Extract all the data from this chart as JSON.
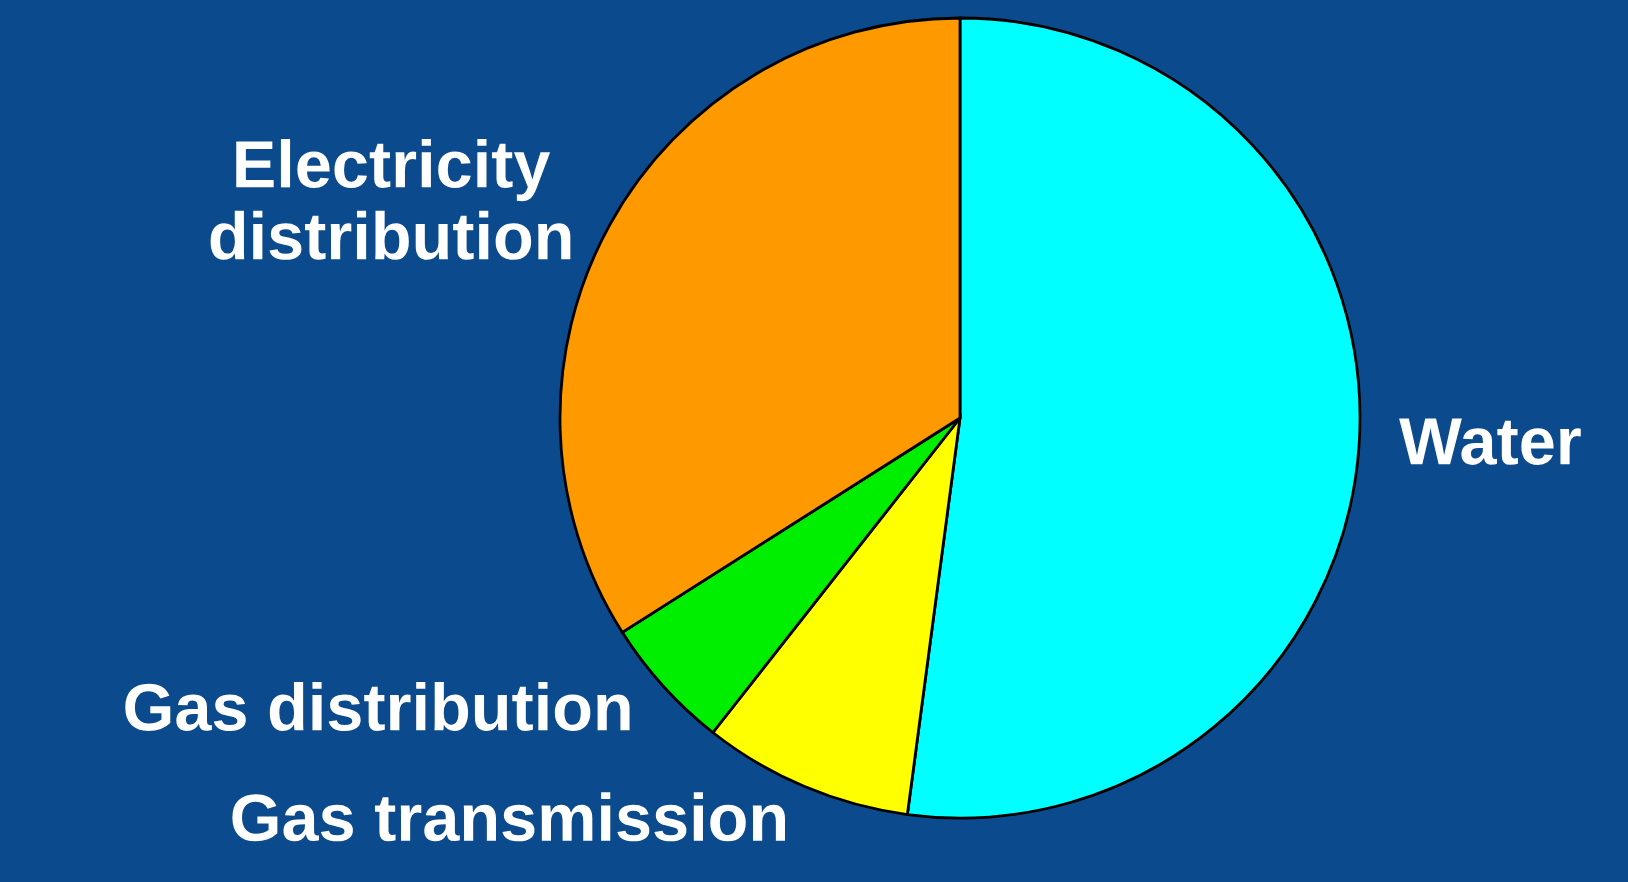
{
  "chart_data": {
    "type": "pie",
    "categories": [
      "Water",
      "Gas transmission",
      "Gas distribution",
      "Electricity\ndistribution"
    ],
    "values": [
      52.1,
      8.5,
      5.4,
      34.0
    ],
    "colors": [
      "#00ffff",
      "#ffff00",
      "#00ee00",
      "#ff9900"
    ]
  }
}
